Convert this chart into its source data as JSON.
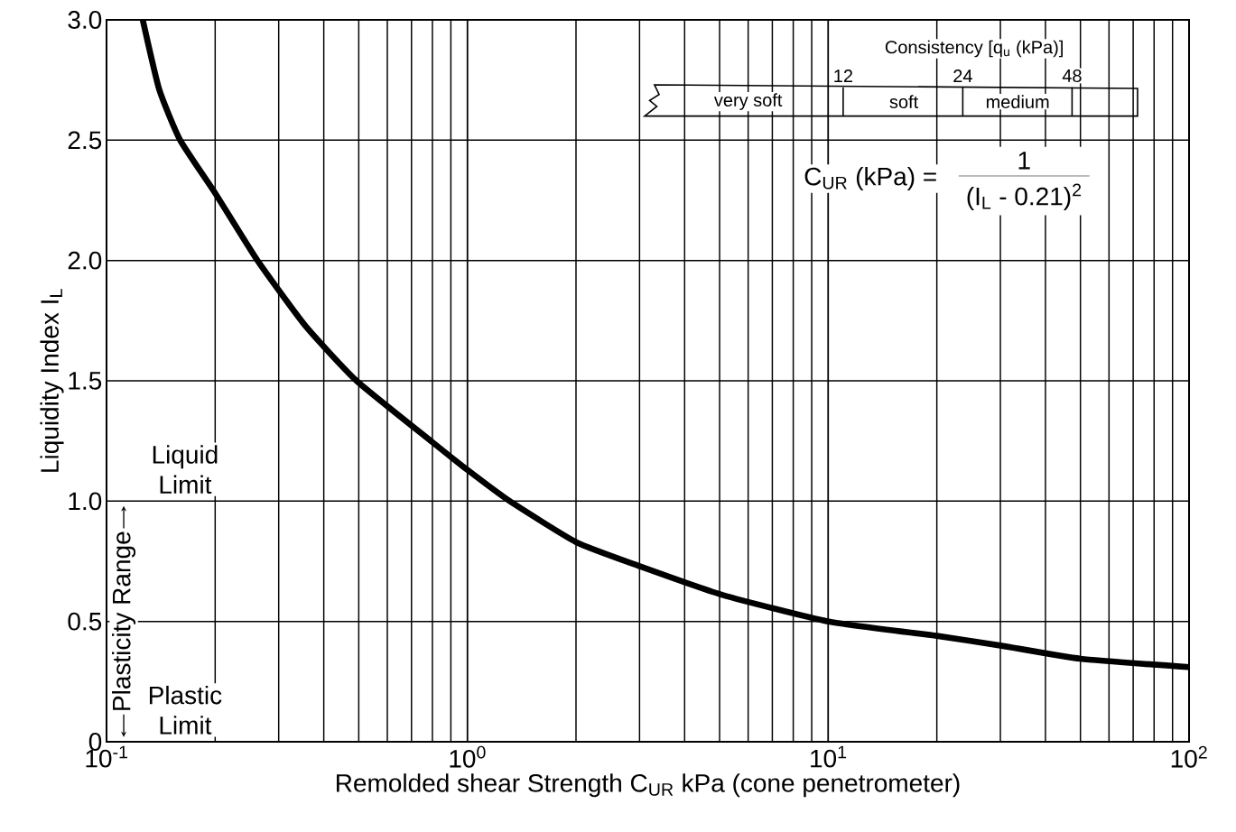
{
  "chart_data": {
    "type": "line",
    "xlabel": "Remolded shear Strength C$_{UR}$ kPa (cone penetrometer)",
    "ylabel": "Liquidity Index I$_{L}$",
    "log": "x",
    "xlim": [
      0.1,
      100
    ],
    "ylim": [
      0,
      3
    ],
    "xticks": [
      {
        "value": 0.1,
        "label": "10$^{-1}$"
      },
      {
        "value": 1,
        "label": "10$^{0}$"
      },
      {
        "value": 10,
        "label": "10$^{1}$"
      },
      {
        "value": 100,
        "label": "10$^{2}$"
      }
    ],
    "yticks": [
      0,
      0.5,
      {
        "value": 1,
        "label": "1.0"
      },
      1.5,
      {
        "value": 2,
        "label": "2.0"
      },
      2.5,
      {
        "value": 3,
        "label": "3.0"
      }
    ],
    "grid": true,
    "series": [
      {
        "color": "#000000",
        "x": [
          0.126,
          0.14,
          0.16,
          0.2,
          0.262,
          0.355,
          0.493,
          0.8,
          1.0,
          1.31,
          2.0,
          3.0,
          5.1,
          10,
          20,
          30,
          50,
          100
        ],
        "values": [
          3.0,
          2.71,
          2.5,
          2.28,
          2.0,
          1.73,
          1.5,
          1.245,
          1.13,
          1.0,
          0.83,
          0.73,
          0.61,
          0.5,
          0.44,
          0.4,
          0.345,
          0.31
        ]
      }
    ],
    "annotations": [
      "Consistency [q$_{u}$ (kPa)]",
      "12",
      "24",
      "48",
      "very soft",
      "soft",
      "medium",
      "C$_{UR}$ (kPa) =",
      "1",
      "(I$_{L}$ - 0.21)$^{2}$",
      "Liquid Limit",
      "Plastic Limit",
      "Plasticity Range"
    ]
  }
}
